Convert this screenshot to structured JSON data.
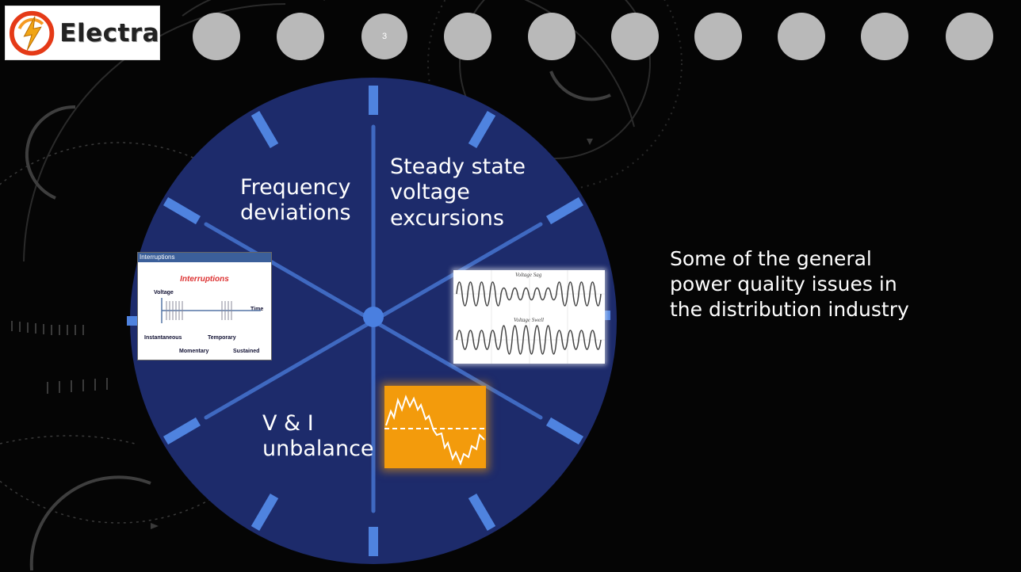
{
  "logo": {
    "text": "Electra"
  },
  "nav": {
    "dots": [
      "",
      "",
      "3",
      "",
      "",
      "",
      "",
      "",
      "",
      ""
    ],
    "active_index": 2
  },
  "wheel": {
    "labels": {
      "frequency": [
        "Frequency",
        "deviations"
      ],
      "steady_state": [
        "Steady state",
        "voltage",
        "excursions"
      ],
      "unbalance": [
        "V & I",
        "unbalance"
      ]
    }
  },
  "thumbnails": {
    "interruptions": {
      "bar": "Interruptions",
      "title": "Interruptions",
      "voltage": "Voltage",
      "time": "Time",
      "instantaneous": "Instantaneous",
      "temporary": "Temporary",
      "momentary": "Momentary",
      "sustained": "Sustained"
    },
    "voltage_chart": {
      "sag": "Voltage Sag",
      "swell": "Voltage Swell"
    }
  },
  "side_text": "Some of the general power quality issues in the distribution industry",
  "colors": {
    "wheel": "#1d2b6b",
    "spoke": "#5b88dd",
    "accent": "#4a7fe0",
    "orange": "#f39b0c",
    "nav_dot": "#b9b9b9"
  }
}
